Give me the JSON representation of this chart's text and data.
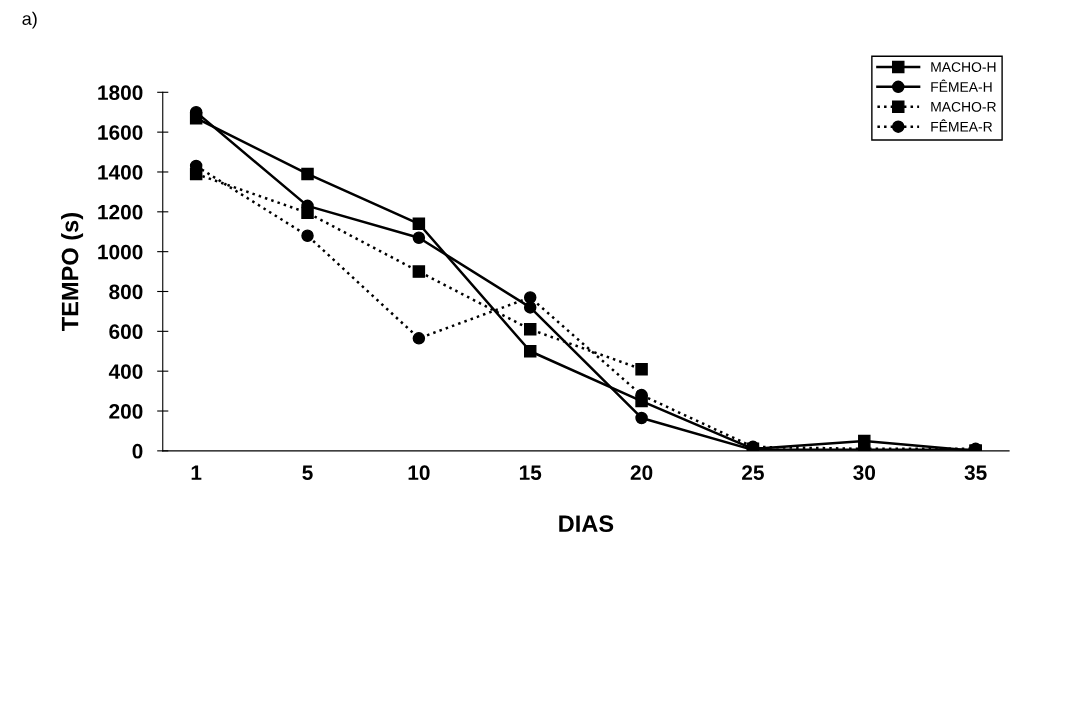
{
  "chart_data": {
    "type": "line",
    "xlabel": "DIAS",
    "ylabel": "TEMPO (s)",
    "annotations": [
      "a)"
    ],
    "categories": [
      "1",
      "5",
      "10",
      "15",
      "20",
      "25",
      "30",
      "35"
    ],
    "ylim": [
      0,
      1800
    ],
    "yticks": [
      0,
      200,
      400,
      600,
      800,
      1000,
      1200,
      1400,
      1600,
      1800
    ],
    "grid": false,
    "legend": "top right",
    "series": [
      {
        "name": "MACHO-H",
        "color": "#000000",
        "marker": "square",
        "line_style": "solid",
        "values": [
          1670,
          1390,
          1140,
          500,
          250,
          10,
          50,
          0
        ]
      },
      {
        "name": "FÊMEA-H",
        "color": "#000000",
        "marker": "circle",
        "line_style": "solid",
        "values": [
          1700,
          1230,
          1070,
          720,
          165,
          5,
          5,
          5
        ]
      },
      {
        "name": "MACHO-R",
        "color": "#000000",
        "marker": "square",
        "line_style": "dotted",
        "values": [
          1390,
          1195,
          900,
          610,
          410,
          null,
          null,
          0
        ]
      },
      {
        "name": "FÊMEA-R",
        "color": "#000000",
        "marker": "circle",
        "line_style": "dotted",
        "values": [
          1430,
          1080,
          565,
          770,
          280,
          20,
          10,
          10
        ]
      }
    ]
  }
}
